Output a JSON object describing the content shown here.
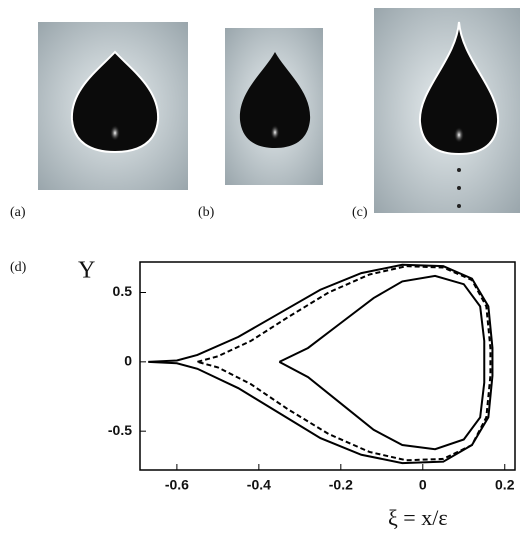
{
  "panels": [
    {
      "label": "(a)"
    },
    {
      "label": "(b)"
    },
    {
      "label": "(c)"
    },
    {
      "label": "(d)"
    }
  ],
  "chart_data": {
    "type": "line",
    "ylabel": "Y",
    "xlabel": "ξ = x/ε",
    "xlim": [
      -0.69,
      0.225
    ],
    "ylim": [
      -0.78,
      0.72
    ],
    "xticks": [
      -0.6,
      -0.4,
      -0.2,
      0,
      0.2
    ],
    "yticks": [
      -0.5,
      0,
      0.5
    ],
    "series": [
      {
        "color": "#000000",
        "dash": "solid",
        "x": [
          -0.67,
          -0.6,
          -0.55,
          -0.45,
          -0.35,
          -0.25,
          -0.15,
          -0.05,
          0.05,
          0.12,
          0.16,
          0.17,
          0.17,
          0.16,
          0.12,
          0.05,
          -0.05,
          -0.15,
          -0.25,
          -0.35,
          -0.45,
          -0.55,
          -0.6,
          -0.67
        ],
        "values": [
          0,
          0.01,
          0.05,
          0.18,
          0.35,
          0.52,
          0.64,
          0.7,
          0.69,
          0.6,
          0.4,
          0.1,
          -0.1,
          -0.4,
          -0.6,
          -0.72,
          -0.73,
          -0.67,
          -0.55,
          -0.37,
          -0.19,
          -0.05,
          -0.01,
          0
        ]
      },
      {
        "color": "#000000",
        "dash": "dashed",
        "x": [
          -0.55,
          -0.5,
          -0.42,
          -0.33,
          -0.23,
          -0.13,
          -0.04,
          0.05,
          0.12,
          0.155,
          0.165,
          0.165,
          0.155,
          0.12,
          0.05,
          -0.04,
          -0.13,
          -0.23,
          -0.33,
          -0.42,
          -0.5,
          -0.55
        ],
        "values": [
          0,
          0.04,
          0.15,
          0.32,
          0.5,
          0.63,
          0.69,
          0.68,
          0.59,
          0.4,
          0.1,
          -0.1,
          -0.4,
          -0.6,
          -0.7,
          -0.71,
          -0.65,
          -0.52,
          -0.34,
          -0.16,
          -0.04,
          0
        ]
      },
      {
        "color": "#000000",
        "dash": "solid",
        "x": [
          -0.35,
          -0.28,
          -0.2,
          -0.12,
          -0.05,
          0.03,
          0.1,
          0.14,
          0.15,
          0.15,
          0.14,
          0.1,
          0.03,
          -0.05,
          -0.12,
          -0.2,
          -0.28,
          -0.35
        ],
        "values": [
          0,
          0.1,
          0.28,
          0.46,
          0.58,
          0.62,
          0.56,
          0.4,
          0.15,
          -0.15,
          -0.4,
          -0.56,
          -0.63,
          -0.6,
          -0.49,
          -0.3,
          -0.11,
          0
        ]
      }
    ]
  }
}
